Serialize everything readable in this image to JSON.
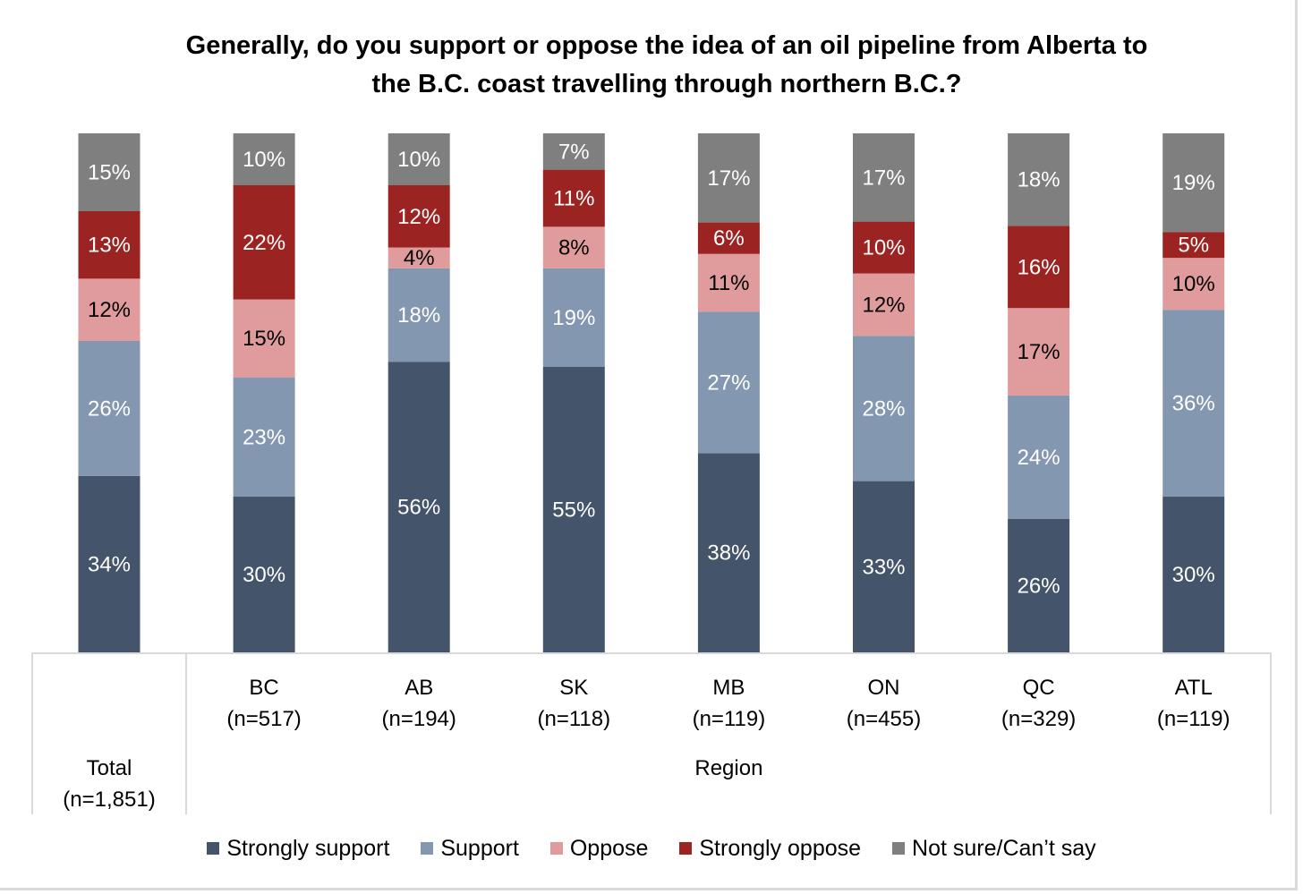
{
  "chart_data": {
    "type": "bar",
    "stacked": true,
    "title": "Generally, do you support or oppose the idea of an oil pipeline from Alberta to the B.C. coast travelling through northern B.C.?",
    "title_lines": [
      "Generally, do you support or oppose the idea of an oil pipeline from Alberta to",
      "the B.C. coast travelling through northern B.C.?"
    ],
    "categories": [
      "Total",
      "BC",
      "AB",
      "SK",
      "MB",
      "ON",
      "QC",
      "ATL"
    ],
    "category_labels": [
      [
        "Total",
        "(n=1,851)"
      ],
      [
        "BC",
        "(n=517)"
      ],
      [
        "AB",
        "(n=194)"
      ],
      [
        "SK",
        "(n=118)"
      ],
      [
        "MB",
        "(n=119)"
      ],
      [
        "ON",
        "(n=455)"
      ],
      [
        "QC",
        "(n=329)"
      ],
      [
        "ATL",
        "(n=119)"
      ]
    ],
    "group_label": "Region",
    "series": [
      {
        "name": "Strongly support",
        "color": "#44546a",
        "values": [
          34,
          30,
          56,
          55,
          38,
          33,
          26,
          30
        ],
        "labels": [
          "34%",
          "30%",
          "56%",
          "55%",
          "38%",
          "33%",
          "26%",
          "30%"
        ],
        "label_color": "#ffffff"
      },
      {
        "name": "Support",
        "color": "#8497b0",
        "values": [
          26,
          23,
          18,
          19,
          27,
          28,
          24,
          36
        ],
        "labels": [
          "26%",
          "23%",
          "18%",
          "19%",
          "27%",
          "28%",
          "24%",
          "36%"
        ],
        "label_color": "#ffffff"
      },
      {
        "name": "Oppose",
        "color": "#e09c9c",
        "values": [
          12,
          15,
          4,
          8,
          11,
          12,
          17,
          10
        ],
        "labels": [
          "12%",
          "15%",
          "4%",
          "8%",
          "11%",
          "12%",
          "17%",
          "10%"
        ],
        "label_color": "#000000"
      },
      {
        "name": "Strongly oppose",
        "color": "#9b2423",
        "values": [
          13,
          22,
          12,
          11,
          6,
          10,
          16,
          5
        ],
        "labels": [
          "13%",
          "22%",
          "12%",
          "11%",
          "6%",
          "10%",
          "16%",
          "5%"
        ],
        "label_color": "#ffffff"
      },
      {
        "name": "Not sure/Can’t say",
        "color": "#7f7f7f",
        "values": [
          15,
          10,
          10,
          7,
          17,
          17,
          18,
          19
        ],
        "labels": [
          "15%",
          "10%",
          "10%",
          "7%",
          "17%",
          "17%",
          "18%",
          "19%"
        ],
        "label_color": "#ffffff"
      }
    ],
    "ylim": [
      0,
      100
    ],
    "legend_position": "bottom"
  }
}
